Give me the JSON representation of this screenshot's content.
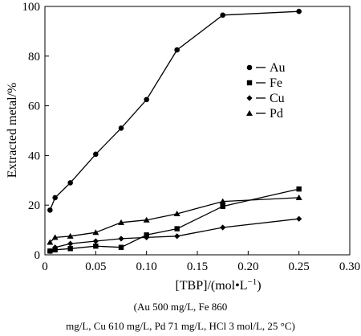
{
  "chart_data": {
    "type": "line",
    "xlabel": "[TBP]/(mol•L",
    "xlabel_sup": "−1",
    "xlabel_end": ")",
    "ylabel": "Extracted metal/%",
    "xlim": [
      0,
      0.3
    ],
    "ylim": [
      0,
      100
    ],
    "xticks": [
      0,
      0.05,
      0.1,
      0.15,
      0.2,
      0.25,
      0.3
    ],
    "xtick_labels": [
      "0",
      "0.05",
      "0.10",
      "0.15",
      "0.20",
      "0.25",
      "0.30"
    ],
    "yticks": [
      0,
      20,
      40,
      60,
      80,
      100
    ],
    "ytick_labels": [
      "0",
      "20",
      "40",
      "60",
      "80",
      "100"
    ],
    "legend_position": "right-middle",
    "grid": false,
    "series": [
      {
        "name": "Au",
        "marker": "circle",
        "x": [
          0.005,
          0.01,
          0.025,
          0.05,
          0.075,
          0.1,
          0.13,
          0.175,
          0.25
        ],
        "y": [
          18,
          23,
          29,
          40.5,
          51,
          62.5,
          82.5,
          96.5,
          98
        ]
      },
      {
        "name": "Fe",
        "marker": "square",
        "x": [
          0.005,
          0.01,
          0.025,
          0.05,
          0.075,
          0.1,
          0.13,
          0.175,
          0.25
        ],
        "y": [
          1.5,
          2,
          2.5,
          3.5,
          3,
          8,
          10.5,
          19.5,
          26.5
        ]
      },
      {
        "name": "Cu",
        "marker": "diamond",
        "x": [
          0.005,
          0.01,
          0.025,
          0.05,
          0.075,
          0.1,
          0.13,
          0.175,
          0.25
        ],
        "y": [
          1.5,
          3,
          4.5,
          5.5,
          6.5,
          7,
          7.5,
          11,
          14.5
        ]
      },
      {
        "name": "Pd",
        "marker": "triangle",
        "x": [
          0.005,
          0.01,
          0.025,
          0.05,
          0.075,
          0.1,
          0.13,
          0.175,
          0.25
        ],
        "y": [
          5,
          7,
          7.5,
          9,
          13,
          14,
          16.5,
          21.5,
          23
        ]
      }
    ]
  },
  "caption": {
    "line1": "(Au 500 mg/L, Fe 860",
    "line2": "mg/L, Cu 610 mg/L, Pd 71 mg/L, HCl 3 mol/L, 25 °C)"
  }
}
